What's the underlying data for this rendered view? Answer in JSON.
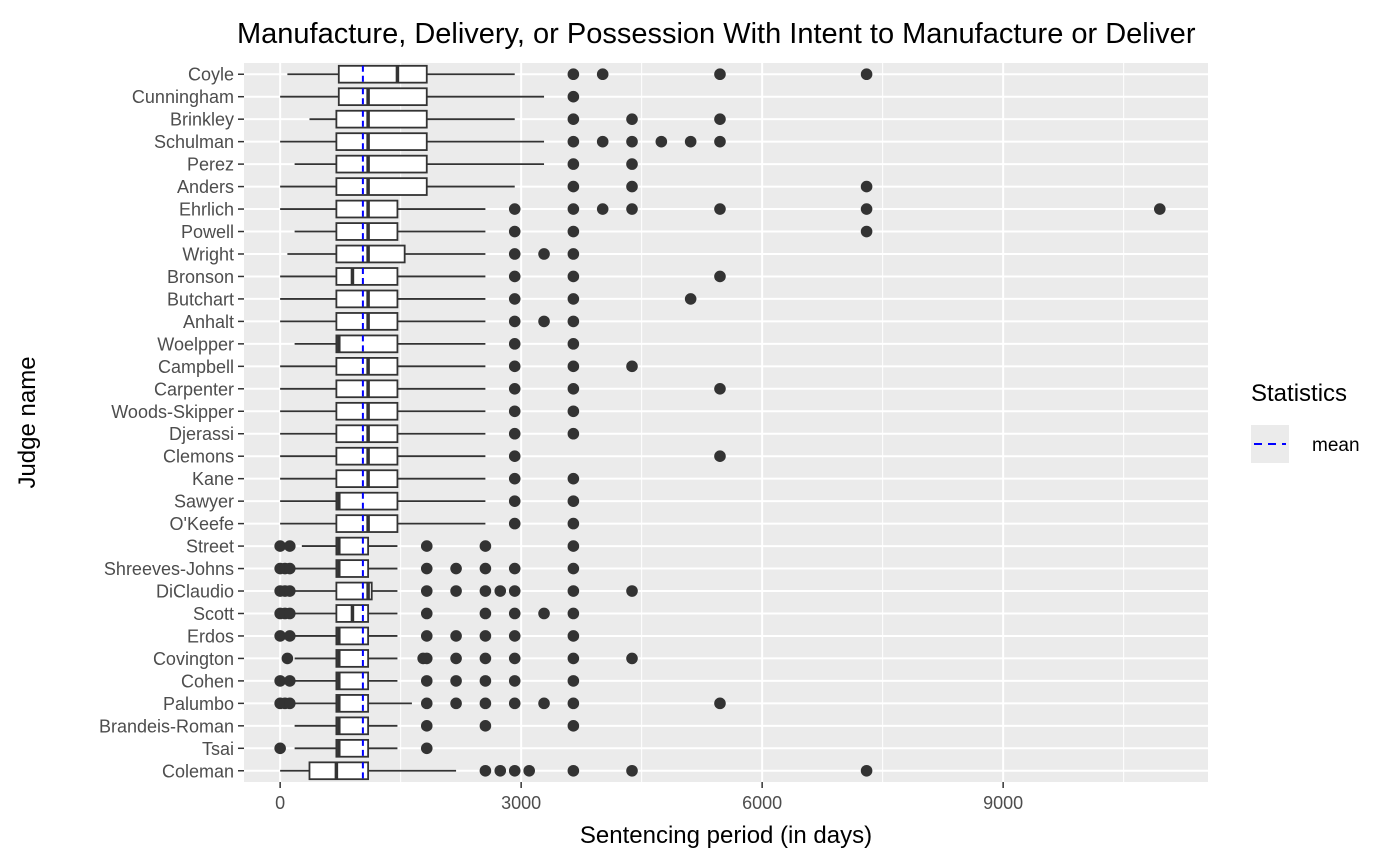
{
  "chart_data": {
    "type": "boxplot",
    "orientation": "horizontal",
    "title": "Manufacture, Delivery, or Possession With Intent to Manufacture or Deliver",
    "xlabel": "Sentencing period (in days)",
    "ylabel": "Judge name",
    "xlim": [
      -450,
      11550
    ],
    "xticks": [
      0,
      3000,
      6000,
      9000
    ],
    "xtick_labels": [
      "0",
      "3000",
      "6000",
      "9000"
    ],
    "legend": {
      "title": "Statistics",
      "entries": [
        {
          "label": "mean",
          "color": "#0000ff",
          "linetype": "dashed"
        }
      ],
      "position": "right"
    },
    "colors": {
      "panel": "#ebebeb",
      "grid": "#ffffff",
      "box_fill": "#ffffff",
      "box_line": "#333333",
      "outlier": "#333333",
      "mean_line": "#0000ff"
    },
    "categories": [
      "Coyle",
      "Cunningham",
      "Brinkley",
      "Schulman",
      "Perez",
      "Anders",
      "Ehrlich",
      "Powell",
      "Wright",
      "Bronson",
      "Butchart",
      "Anhalt",
      "Woelpper",
      "Campbell",
      "Carpenter",
      "Woods-Skipper",
      "Djerassi",
      "Clemons",
      "Kane",
      "Sawyer",
      "O'Keefe",
      "Street",
      "Shreeves-Johns",
      "DiClaudio",
      "Scott",
      "Erdos",
      "Covington",
      "Cohen",
      "Palumbo",
      "Brandeis-Roman",
      "Tsai",
      "Coleman"
    ],
    "boxes": [
      {
        "judge": "Coyle",
        "lower_whisker": 90,
        "q1": 730,
        "median": 1460,
        "q3": 1825,
        "upper_whisker": 2920,
        "mean": 1030,
        "outliers": [
          3650,
          4015,
          5475,
          7300
        ]
      },
      {
        "judge": "Cunningham",
        "lower_whisker": 0,
        "q1": 730,
        "median": 1095,
        "q3": 1825,
        "upper_whisker": 3285,
        "mean": 1030,
        "outliers": [
          3650
        ]
      },
      {
        "judge": "Brinkley",
        "lower_whisker": 365,
        "q1": 700,
        "median": 1095,
        "q3": 1825,
        "upper_whisker": 2920,
        "mean": 1030,
        "outliers": [
          3650,
          4380,
          5475
        ]
      },
      {
        "judge": "Schulman",
        "lower_whisker": 0,
        "q1": 700,
        "median": 1095,
        "q3": 1825,
        "upper_whisker": 3285,
        "mean": 1030,
        "outliers": [
          3650,
          4015,
          4380,
          4745,
          5110,
          5475
        ]
      },
      {
        "judge": "Perez",
        "lower_whisker": 180,
        "q1": 700,
        "median": 1095,
        "q3": 1825,
        "upper_whisker": 3285,
        "mean": 1030,
        "outliers": [
          3650,
          4380
        ]
      },
      {
        "judge": "Anders",
        "lower_whisker": 0,
        "q1": 700,
        "median": 1095,
        "q3": 1825,
        "upper_whisker": 2920,
        "mean": 1030,
        "outliers": [
          3650,
          4380,
          7300
        ]
      },
      {
        "judge": "Ehrlich",
        "lower_whisker": 0,
        "q1": 700,
        "median": 1095,
        "q3": 1460,
        "upper_whisker": 2555,
        "mean": 1030,
        "outliers": [
          2920,
          3650,
          4015,
          4380,
          5475,
          7300,
          10950
        ]
      },
      {
        "judge": "Powell",
        "lower_whisker": 180,
        "q1": 700,
        "median": 1095,
        "q3": 1460,
        "upper_whisker": 2555,
        "mean": 1030,
        "outliers": [
          2920,
          3650,
          7300
        ]
      },
      {
        "judge": "Wright",
        "lower_whisker": 90,
        "q1": 700,
        "median": 1095,
        "q3": 1550,
        "upper_whisker": 2555,
        "mean": 1030,
        "outliers": [
          2920,
          3285,
          3650
        ]
      },
      {
        "judge": "Bronson",
        "lower_whisker": 0,
        "q1": 700,
        "median": 900,
        "q3": 1460,
        "upper_whisker": 2555,
        "mean": 1030,
        "outliers": [
          2920,
          3650,
          5475
        ]
      },
      {
        "judge": "Butchart",
        "lower_whisker": 0,
        "q1": 700,
        "median": 1095,
        "q3": 1460,
        "upper_whisker": 2555,
        "mean": 1030,
        "outliers": [
          2920,
          3650,
          5110
        ]
      },
      {
        "judge": "Anhalt",
        "lower_whisker": 0,
        "q1": 700,
        "median": 1095,
        "q3": 1460,
        "upper_whisker": 2555,
        "mean": 1030,
        "outliers": [
          2920,
          3285,
          3650
        ]
      },
      {
        "judge": "Woelpper",
        "lower_whisker": 180,
        "q1": 700,
        "median": 730,
        "q3": 1460,
        "upper_whisker": 2555,
        "mean": 1030,
        "outliers": [
          2920,
          3650
        ]
      },
      {
        "judge": "Campbell",
        "lower_whisker": 0,
        "q1": 700,
        "median": 1095,
        "q3": 1460,
        "upper_whisker": 2555,
        "mean": 1030,
        "outliers": [
          2920,
          3650,
          4380
        ]
      },
      {
        "judge": "Carpenter",
        "lower_whisker": 0,
        "q1": 700,
        "median": 1095,
        "q3": 1460,
        "upper_whisker": 2555,
        "mean": 1030,
        "outliers": [
          2920,
          3650,
          5475
        ]
      },
      {
        "judge": "Woods-Skipper",
        "lower_whisker": 0,
        "q1": 700,
        "median": 1095,
        "q3": 1460,
        "upper_whisker": 2555,
        "mean": 1030,
        "outliers": [
          2920,
          3650
        ]
      },
      {
        "judge": "Djerassi",
        "lower_whisker": 0,
        "q1": 700,
        "median": 1095,
        "q3": 1460,
        "upper_whisker": 2555,
        "mean": 1030,
        "outliers": [
          2920,
          3650
        ]
      },
      {
        "judge": "Clemons",
        "lower_whisker": 0,
        "q1": 700,
        "median": 1095,
        "q3": 1460,
        "upper_whisker": 2555,
        "mean": 1030,
        "outliers": [
          2920,
          5475
        ]
      },
      {
        "judge": "Kane",
        "lower_whisker": 0,
        "q1": 700,
        "median": 1095,
        "q3": 1460,
        "upper_whisker": 2555,
        "mean": 1030,
        "outliers": [
          2920,
          3650
        ]
      },
      {
        "judge": "Sawyer",
        "lower_whisker": 0,
        "q1": 700,
        "median": 730,
        "q3": 1460,
        "upper_whisker": 2555,
        "mean": 1030,
        "outliers": [
          2920,
          3650
        ]
      },
      {
        "judge": "O'Keefe",
        "lower_whisker": 0,
        "q1": 700,
        "median": 1095,
        "q3": 1460,
        "upper_whisker": 2555,
        "mean": 1030,
        "outliers": [
          2920,
          3650
        ]
      },
      {
        "judge": "Street",
        "lower_whisker": 270,
        "q1": 700,
        "median": 730,
        "q3": 1095,
        "upper_whisker": 1460,
        "mean": 1030,
        "outliers": [
          0,
          120,
          1825,
          2555,
          3650
        ]
      },
      {
        "judge": "Shreeves-Johns",
        "lower_whisker": 180,
        "q1": 700,
        "median": 730,
        "q3": 1095,
        "upper_whisker": 1460,
        "mean": 1030,
        "outliers": [
          0,
          60,
          120,
          1825,
          2190,
          2555,
          2920,
          3650
        ]
      },
      {
        "judge": "DiClaudio",
        "lower_whisker": 180,
        "q1": 700,
        "median": 1095,
        "q3": 1140,
        "upper_whisker": 1460,
        "mean": 1030,
        "outliers": [
          0,
          60,
          120,
          1825,
          2190,
          2555,
          2740,
          2920,
          3650,
          4380
        ]
      },
      {
        "judge": "Scott",
        "lower_whisker": 180,
        "q1": 700,
        "median": 900,
        "q3": 1095,
        "upper_whisker": 1460,
        "mean": 1030,
        "outliers": [
          0,
          60,
          120,
          1825,
          2555,
          2920,
          3285,
          3650
        ]
      },
      {
        "judge": "Erdos",
        "lower_whisker": 180,
        "q1": 700,
        "median": 730,
        "q3": 1095,
        "upper_whisker": 1460,
        "mean": 1030,
        "outliers": [
          0,
          120,
          1825,
          2190,
          2555,
          2920,
          3650
        ]
      },
      {
        "judge": "Covington",
        "lower_whisker": 180,
        "q1": 700,
        "median": 730,
        "q3": 1095,
        "upper_whisker": 1460,
        "mean": 1030,
        "outliers": [
          90,
          1780,
          1825,
          2190,
          2555,
          2920,
          3650,
          4380
        ]
      },
      {
        "judge": "Cohen",
        "lower_whisker": 180,
        "q1": 700,
        "median": 730,
        "q3": 1095,
        "upper_whisker": 1460,
        "mean": 1030,
        "outliers": [
          0,
          120,
          1825,
          2190,
          2555,
          2920,
          3650
        ]
      },
      {
        "judge": "Palumbo",
        "lower_whisker": 180,
        "q1": 700,
        "median": 730,
        "q3": 1095,
        "upper_whisker": 1640,
        "mean": 1030,
        "outliers": [
          0,
          60,
          120,
          1825,
          2190,
          2555,
          2920,
          3285,
          3650,
          5475
        ]
      },
      {
        "judge": "Brandeis-Roman",
        "lower_whisker": 180,
        "q1": 700,
        "median": 730,
        "q3": 1095,
        "upper_whisker": 1460,
        "mean": 1030,
        "outliers": [
          1825,
          2555,
          3650
        ]
      },
      {
        "judge": "Tsai",
        "lower_whisker": 180,
        "q1": 700,
        "median": 730,
        "q3": 1095,
        "upper_whisker": 1460,
        "mean": 1030,
        "outliers": [
          0,
          1825
        ]
      },
      {
        "judge": "Coleman",
        "lower_whisker": 0,
        "q1": 365,
        "median": 700,
        "q3": 1095,
        "upper_whisker": 2190,
        "mean": 1030,
        "outliers": [
          2555,
          2740,
          2920,
          3100,
          3650,
          4380,
          7300
        ]
      }
    ]
  }
}
